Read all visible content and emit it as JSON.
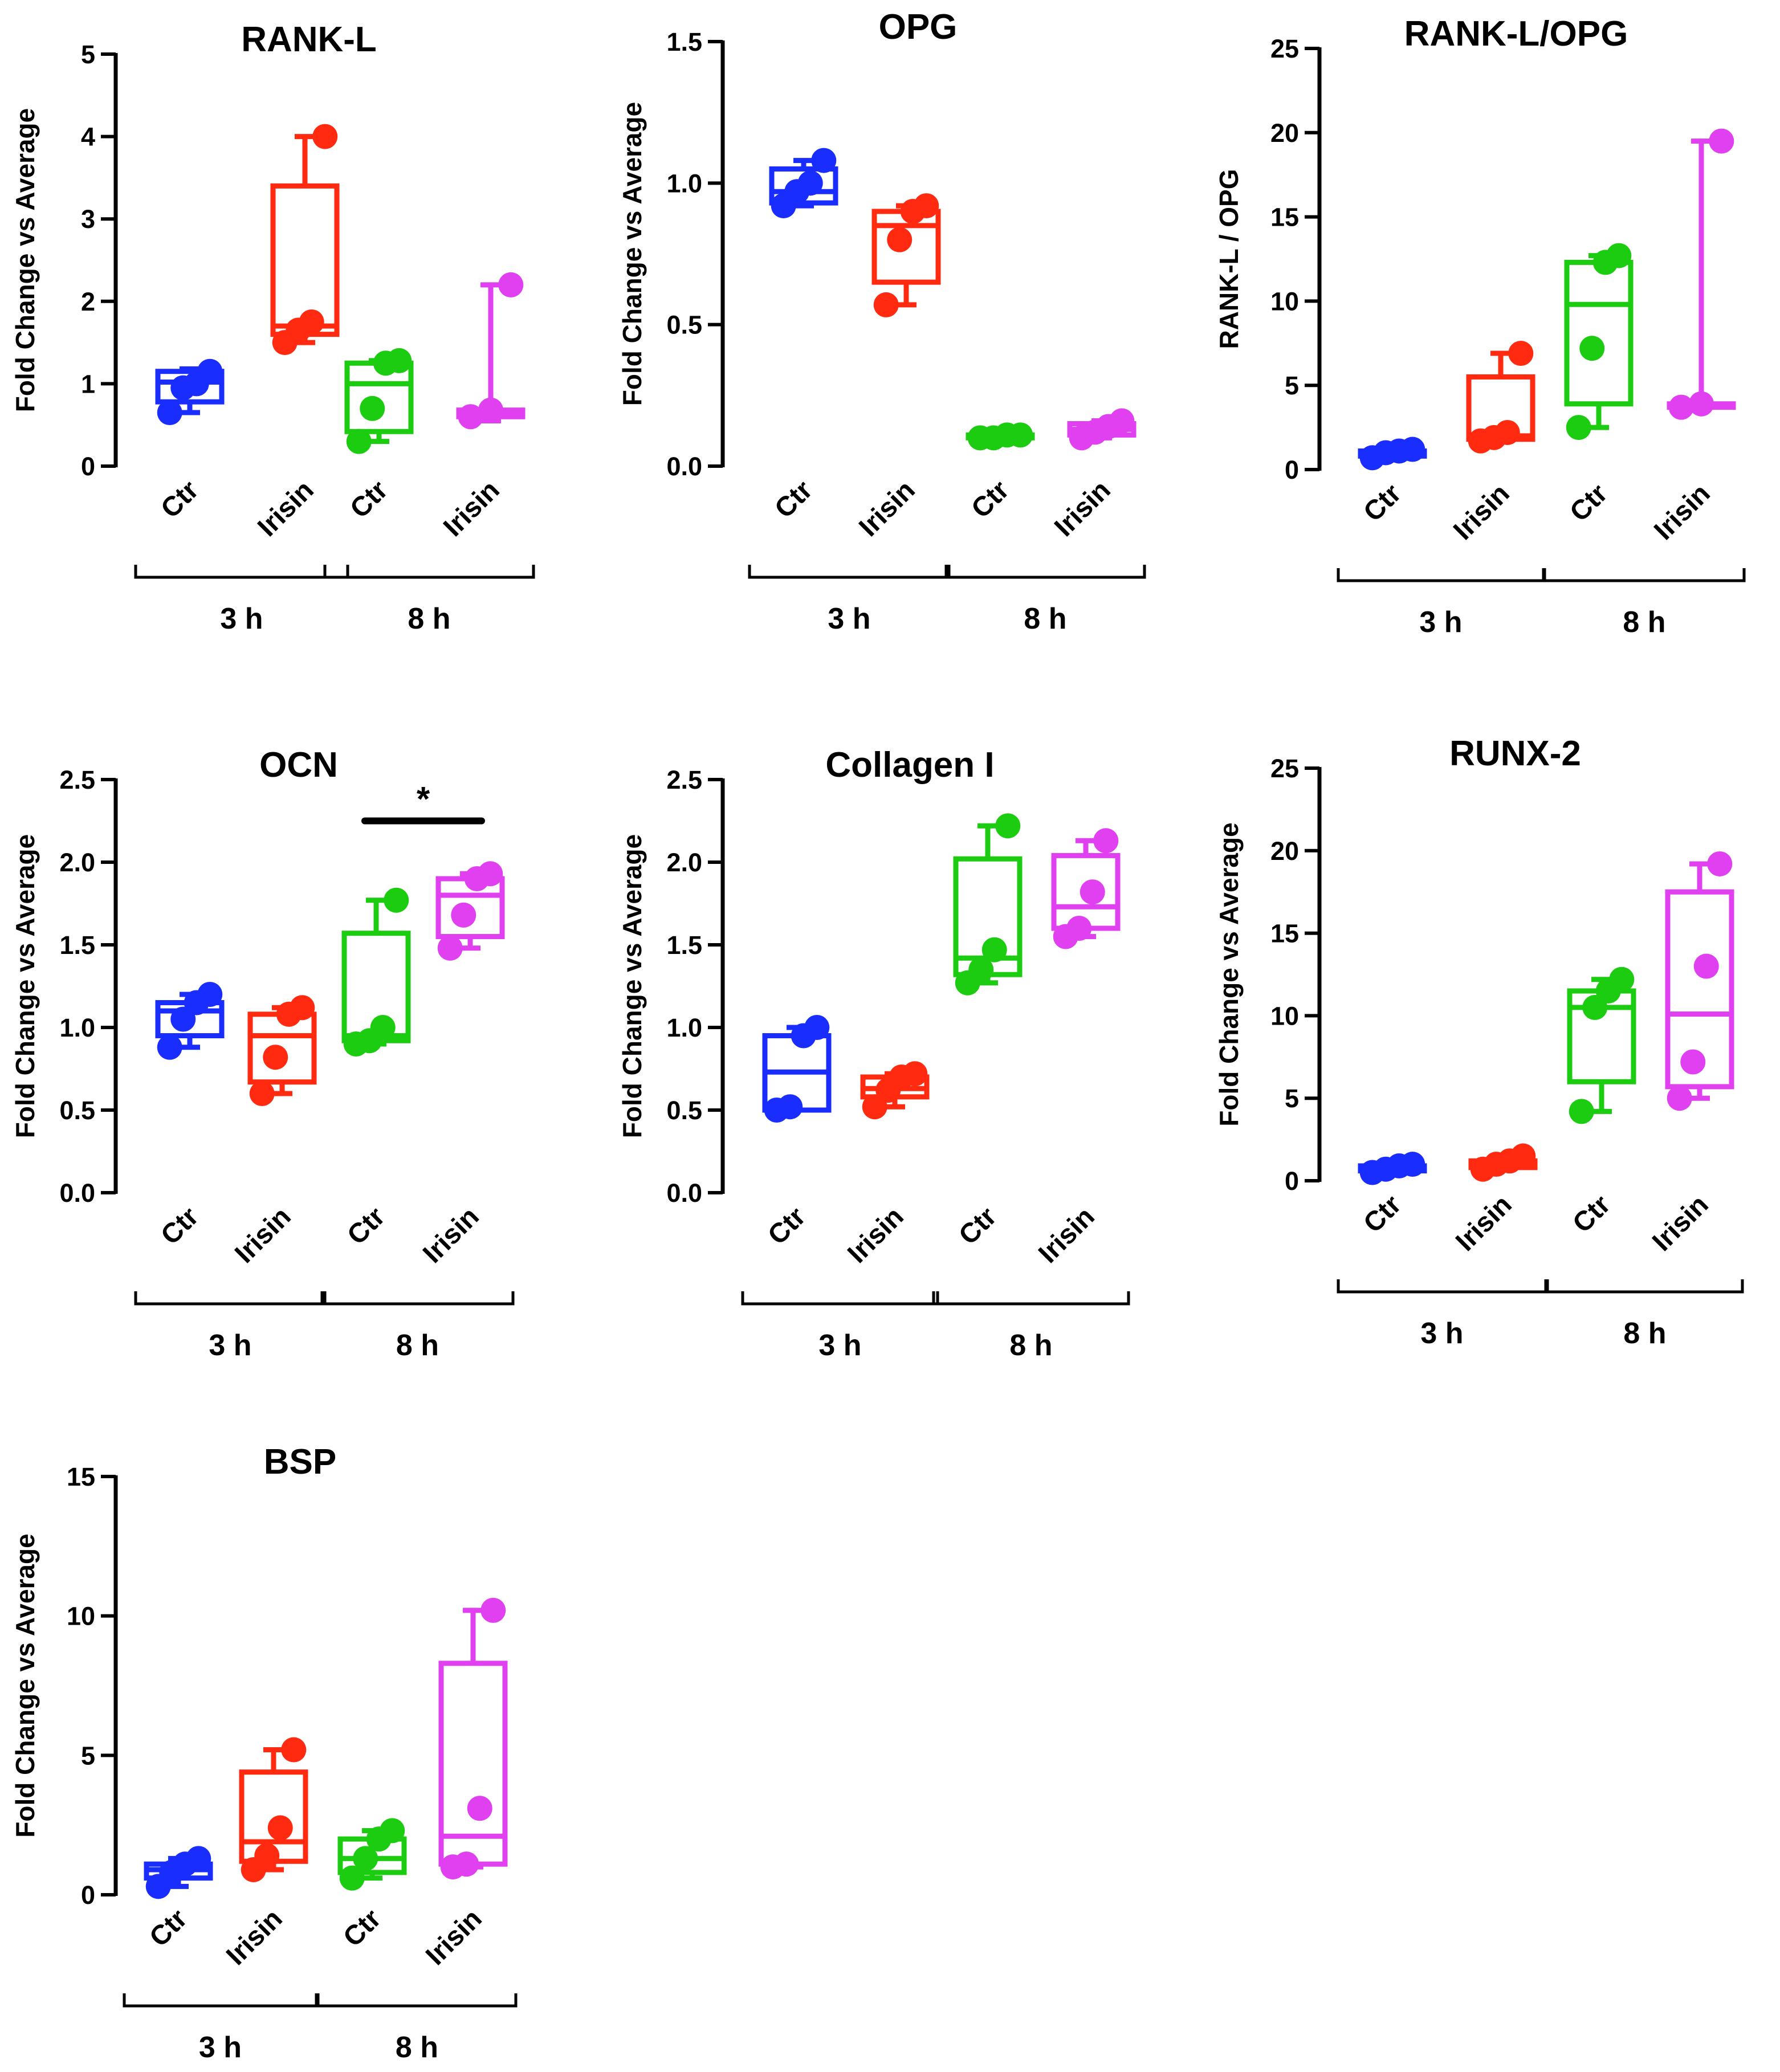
{
  "colors": {
    "ctr_3h": "#1a2dff",
    "irisin_3h": "#ff2a10",
    "ctr_8h": "#1ccc10",
    "irisin_8h": "#e040f0",
    "axis": "#000000"
  },
  "chart_data": [
    {
      "type": "box",
      "title": "RANK-L",
      "ylabel": "Fold Change vs Average",
      "ylim": [
        0,
        5
      ],
      "yticks": [
        "0",
        "1",
        "2",
        "3",
        "4",
        "5"
      ],
      "groups": [
        {
          "label": "Ctr",
          "time": "3 h",
          "min": 0.65,
          "q1": 0.78,
          "median": 1.02,
          "q3": 1.15,
          "max": 1.18,
          "points": [
            0.65,
            0.95,
            1.0,
            1.15
          ]
        },
        {
          "label": "Irisin",
          "time": "3 h",
          "min": 1.5,
          "q1": 1.6,
          "median": 1.7,
          "q3": 3.4,
          "max": 4.0,
          "points": [
            1.5,
            1.65,
            1.75,
            4.0
          ]
        },
        {
          "label": "Ctr",
          "time": "8 h",
          "min": 0.3,
          "q1": 0.42,
          "median": 1.0,
          "q3": 1.25,
          "max": 1.28,
          "points": [
            0.3,
            0.7,
            1.25,
            1.28
          ]
        },
        {
          "label": "Irisin",
          "time": "8 h",
          "min": 0.55,
          "q1": 0.6,
          "median": 0.65,
          "q3": 0.68,
          "max": 2.2,
          "points": [
            0.6,
            0.68,
            2.2
          ]
        }
      ],
      "time_labels": [
        "3 h",
        "8 h"
      ],
      "significance": null
    },
    {
      "type": "box",
      "title": "OPG",
      "ylabel": "Fold Change vs Average",
      "ylim": [
        0,
        1.5
      ],
      "yticks": [
        "0.0",
        "0.5",
        "1.0",
        "1.5"
      ],
      "groups": [
        {
          "label": "Ctr",
          "time": "3 h",
          "min": 0.92,
          "q1": 0.93,
          "median": 0.97,
          "q3": 1.05,
          "max": 1.08,
          "points": [
            0.92,
            0.97,
            1.0,
            1.08
          ]
        },
        {
          "label": "Irisin",
          "time": "3 h",
          "min": 0.57,
          "q1": 0.65,
          "median": 0.85,
          "q3": 0.9,
          "max": 0.92,
          "points": [
            0.57,
            0.8,
            0.9,
            0.92
          ]
        },
        {
          "label": "Ctr",
          "time": "8 h",
          "min": 0.1,
          "q1": 0.1,
          "median": 0.1,
          "q3": 0.11,
          "max": 0.11,
          "points": [
            0.1,
            0.1,
            0.11,
            0.11
          ]
        },
        {
          "label": "Irisin",
          "time": "8 h",
          "min": 0.1,
          "q1": 0.11,
          "median": 0.13,
          "q3": 0.15,
          "max": 0.16,
          "points": [
            0.1,
            0.12,
            0.14,
            0.16
          ]
        }
      ],
      "time_labels": [
        "3 h",
        "8 h"
      ],
      "significance": null
    },
    {
      "type": "box",
      "title": "RANK-L/OPG",
      "ylabel": "RANK-L / OPG",
      "ylim": [
        0,
        25
      ],
      "yticks": [
        "0",
        "5",
        "10",
        "15",
        "20",
        "25"
      ],
      "groups": [
        {
          "label": "Ctr",
          "time": "3 h",
          "min": 0.7,
          "q1": 0.8,
          "median": 1.0,
          "q3": 1.1,
          "max": 1.2,
          "points": [
            0.7,
            1.0,
            1.1,
            1.2
          ]
        },
        {
          "label": "Irisin",
          "time": "3 h",
          "min": 1.7,
          "q1": 1.8,
          "median": 2.0,
          "q3": 5.5,
          "max": 6.9,
          "points": [
            1.7,
            1.9,
            2.2,
            6.9
          ]
        },
        {
          "label": "Ctr",
          "time": "8 h",
          "min": 2.5,
          "q1": 3.9,
          "median": 9.8,
          "q3": 12.3,
          "max": 12.7,
          "points": [
            2.5,
            7.2,
            12.3,
            12.7
          ]
        },
        {
          "label": "Irisin",
          "time": "8 h",
          "min": 3.7,
          "q1": 3.7,
          "median": 3.8,
          "q3": 3.9,
          "max": 19.5,
          "points": [
            3.7,
            3.9,
            19.5
          ]
        }
      ],
      "time_labels": [
        "3 h",
        "8 h"
      ],
      "significance": null
    },
    {
      "type": "box",
      "title": "OCN",
      "ylabel": "Fold Change vs Average",
      "ylim": [
        0,
        2.5
      ],
      "yticks": [
        "0.0",
        "0.5",
        "1.0",
        "1.5",
        "2.0",
        "2.5"
      ],
      "groups": [
        {
          "label": "Ctr",
          "time": "3 h",
          "min": 0.88,
          "q1": 0.95,
          "median": 1.1,
          "q3": 1.15,
          "max": 1.2,
          "points": [
            0.88,
            1.05,
            1.15,
            1.2
          ]
        },
        {
          "label": "Irisin",
          "time": "3 h",
          "min": 0.6,
          "q1": 0.67,
          "median": 0.95,
          "q3": 1.08,
          "max": 1.12,
          "points": [
            0.6,
            0.82,
            1.08,
            1.12
          ]
        },
        {
          "label": "Ctr",
          "time": "8 h",
          "min": 0.9,
          "q1": 0.92,
          "median": 0.95,
          "q3": 1.57,
          "max": 1.77,
          "points": [
            0.9,
            0.92,
            1.0,
            1.77
          ]
        },
        {
          "label": "Irisin",
          "time": "8 h",
          "min": 1.48,
          "q1": 1.55,
          "median": 1.8,
          "q3": 1.9,
          "max": 1.93,
          "points": [
            1.48,
            1.68,
            1.9,
            1.93
          ]
        }
      ],
      "time_labels": [
        "3 h",
        "8 h"
      ],
      "significance": {
        "from": 2,
        "to": 3,
        "level": 2.25,
        "label": "*"
      }
    },
    {
      "type": "box",
      "title": "Collagen I",
      "ylabel": "Fold Change vs Average",
      "ylim": [
        0,
        2.5
      ],
      "yticks": [
        "0.0",
        "0.5",
        "1.0",
        "1.5",
        "2.0",
        "2.5"
      ],
      "groups": [
        {
          "label": "Ctr",
          "time": "3 h",
          "min": 0.5,
          "q1": 0.5,
          "median": 0.73,
          "q3": 0.95,
          "max": 1.0,
          "points": [
            0.5,
            0.52,
            0.95,
            1.0
          ]
        },
        {
          "label": "Irisin",
          "time": "3 h",
          "min": 0.52,
          "q1": 0.58,
          "median": 0.63,
          "q3": 0.7,
          "max": 0.72,
          "points": [
            0.52,
            0.62,
            0.7,
            0.72
          ]
        },
        {
          "label": "Ctr",
          "time": "8 h",
          "min": 1.27,
          "q1": 1.32,
          "median": 1.42,
          "q3": 2.02,
          "max": 2.22,
          "points": [
            1.27,
            1.35,
            1.47,
            2.22
          ]
        },
        {
          "label": "Irisin",
          "time": "8 h",
          "min": 1.55,
          "q1": 1.6,
          "median": 1.73,
          "q3": 2.04,
          "max": 2.13,
          "points": [
            1.55,
            1.6,
            1.82,
            2.13
          ]
        }
      ],
      "time_labels": [
        "3 h",
        "8 h"
      ],
      "significance": null
    },
    {
      "type": "box",
      "title": "RUNX-2",
      "ylabel": "Fold Change vs Average",
      "ylim": [
        0,
        25
      ],
      "yticks": [
        "0",
        "5",
        "10",
        "15",
        "20",
        "25"
      ],
      "groups": [
        {
          "label": "Ctr",
          "time": "3 h",
          "min": 0.5,
          "q1": 0.6,
          "median": 0.8,
          "q3": 0.9,
          "max": 1.0,
          "points": [
            0.5,
            0.7,
            0.9,
            1.0
          ]
        },
        {
          "label": "Irisin",
          "time": "3 h",
          "min": 0.7,
          "q1": 0.8,
          "median": 1.0,
          "q3": 1.2,
          "max": 1.5,
          "points": [
            0.7,
            1.0,
            1.2,
            1.5
          ]
        },
        {
          "label": "Ctr",
          "time": "8 h",
          "min": 4.2,
          "q1": 6.0,
          "median": 10.5,
          "q3": 11.5,
          "max": 12.2,
          "points": [
            4.2,
            10.5,
            11.5,
            12.2
          ]
        },
        {
          "label": "Irisin",
          "time": "8 h",
          "min": 5.0,
          "q1": 5.7,
          "median": 10.1,
          "q3": 17.5,
          "max": 19.2,
          "points": [
            5.0,
            7.2,
            13.0,
            19.2
          ]
        }
      ],
      "time_labels": [
        "3 h",
        "8 h"
      ],
      "significance": null
    },
    {
      "type": "box",
      "title": "BSP",
      "ylabel": "Fold Change vs Average",
      "ylim": [
        0,
        15
      ],
      "yticks": [
        "0",
        "5",
        "10",
        "15"
      ],
      "groups": [
        {
          "label": "Ctr",
          "time": "3 h",
          "min": 0.3,
          "q1": 0.6,
          "median": 0.9,
          "q3": 1.1,
          "max": 1.3,
          "points": [
            0.3,
            0.8,
            1.1,
            1.3
          ]
        },
        {
          "label": "Irisin",
          "time": "3 h",
          "min": 0.9,
          "q1": 1.2,
          "median": 1.9,
          "q3": 4.4,
          "max": 5.2,
          "points": [
            0.9,
            1.4,
            2.4,
            5.2
          ]
        },
        {
          "label": "Ctr",
          "time": "8 h",
          "min": 0.6,
          "q1": 0.8,
          "median": 1.3,
          "q3": 2.0,
          "max": 2.3,
          "points": [
            0.6,
            1.3,
            2.0,
            2.3
          ]
        },
        {
          "label": "Irisin",
          "time": "8 h",
          "min": 1.0,
          "q1": 1.1,
          "median": 2.1,
          "q3": 8.3,
          "max": 10.2,
          "points": [
            1.0,
            1.1,
            3.1,
            10.2
          ]
        }
      ],
      "time_labels": [
        "3 h",
        "8 h"
      ],
      "significance": null
    }
  ]
}
